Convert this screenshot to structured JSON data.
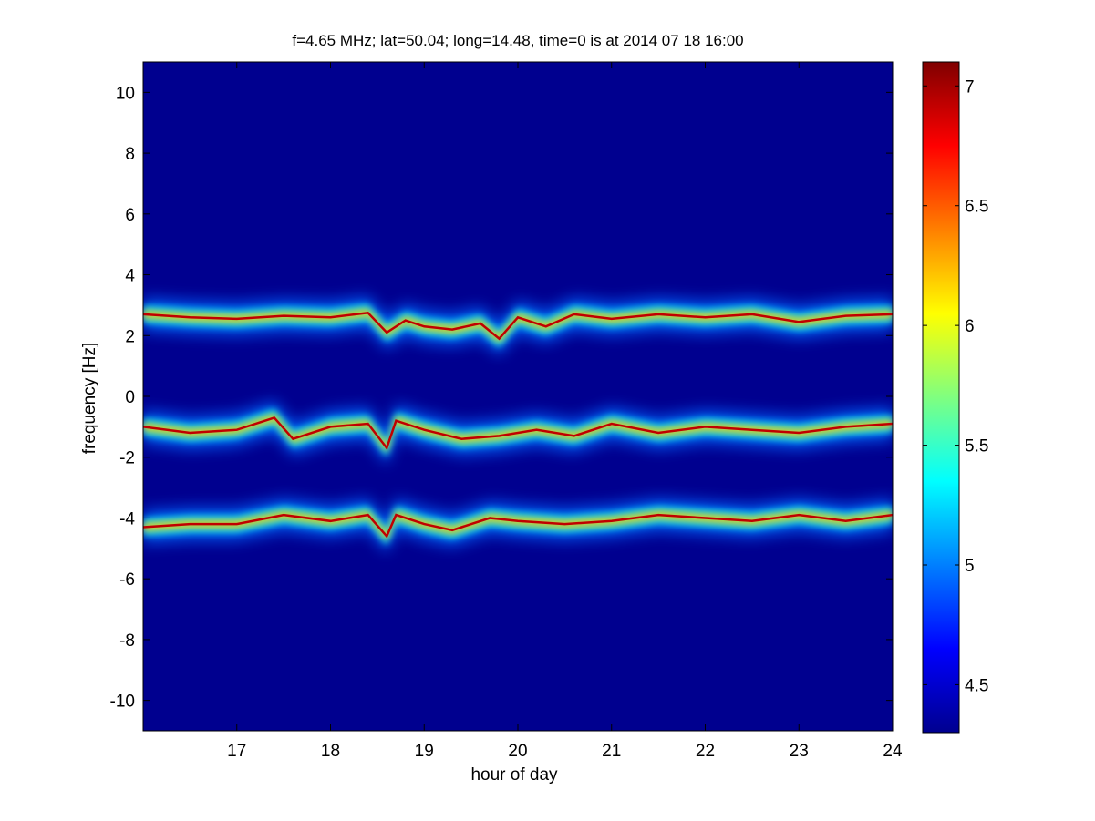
{
  "chart_data": {
    "type": "heatmap",
    "title": "f=4.65 MHz;  lat=50.04; long=14.48, time=0 is at 2014 07 18 16:00",
    "xlabel": "hour of day",
    "ylabel": "frequency [Hz]",
    "xlim": [
      16,
      24
    ],
    "ylim": [
      -11,
      11
    ],
    "xticks": [
      17,
      18,
      19,
      20,
      21,
      22,
      23,
      24
    ],
    "yticks": [
      -10,
      -8,
      -6,
      -4,
      -2,
      0,
      2,
      4,
      6,
      8,
      10
    ],
    "colorbar": {
      "colormap": "jet",
      "clim": [
        4.3,
        7.1
      ],
      "ticks": [
        4.5,
        5,
        5.5,
        6,
        6.5,
        7
      ]
    },
    "background_value": 4.3,
    "series": [
      {
        "center_freq": 2.7,
        "ridge": [
          [
            16.0,
            2.7
          ],
          [
            16.5,
            2.6
          ],
          [
            17.0,
            2.55
          ],
          [
            17.5,
            2.65
          ],
          [
            18.0,
            2.6
          ],
          [
            18.4,
            2.75
          ],
          [
            18.6,
            2.1
          ],
          [
            18.8,
            2.5
          ],
          [
            19.0,
            2.3
          ],
          [
            19.3,
            2.2
          ],
          [
            19.6,
            2.4
          ],
          [
            19.8,
            1.9
          ],
          [
            20.0,
            2.6
          ],
          [
            20.3,
            2.3
          ],
          [
            20.6,
            2.7
          ],
          [
            21.0,
            2.55
          ],
          [
            21.5,
            2.7
          ],
          [
            22.0,
            2.6
          ],
          [
            22.5,
            2.7
          ],
          [
            23.0,
            2.45
          ],
          [
            23.5,
            2.65
          ],
          [
            24.0,
            2.7
          ]
        ]
      },
      {
        "center_freq": -1.0,
        "ridge": [
          [
            16.0,
            -1.0
          ],
          [
            16.5,
            -1.2
          ],
          [
            17.0,
            -1.1
          ],
          [
            17.4,
            -0.7
          ],
          [
            17.6,
            -1.4
          ],
          [
            18.0,
            -1.0
          ],
          [
            18.4,
            -0.9
          ],
          [
            18.6,
            -1.7
          ],
          [
            18.7,
            -0.8
          ],
          [
            19.0,
            -1.1
          ],
          [
            19.4,
            -1.4
          ],
          [
            19.8,
            -1.3
          ],
          [
            20.2,
            -1.1
          ],
          [
            20.6,
            -1.3
          ],
          [
            21.0,
            -0.9
          ],
          [
            21.5,
            -1.2
          ],
          [
            22.0,
            -1.0
          ],
          [
            22.5,
            -1.1
          ],
          [
            23.0,
            -1.2
          ],
          [
            23.5,
            -1.0
          ],
          [
            24.0,
            -0.9
          ]
        ]
      },
      {
        "center_freq": -4.0,
        "ridge": [
          [
            16.0,
            -4.3
          ],
          [
            16.5,
            -4.2
          ],
          [
            17.0,
            -4.2
          ],
          [
            17.5,
            -3.9
          ],
          [
            18.0,
            -4.1
          ],
          [
            18.4,
            -3.9
          ],
          [
            18.6,
            -4.6
          ],
          [
            18.7,
            -3.9
          ],
          [
            19.0,
            -4.2
          ],
          [
            19.3,
            -4.4
          ],
          [
            19.7,
            -4.0
          ],
          [
            20.0,
            -4.1
          ],
          [
            20.5,
            -4.2
          ],
          [
            21.0,
            -4.1
          ],
          [
            21.5,
            -3.9
          ],
          [
            22.0,
            -4.0
          ],
          [
            22.5,
            -4.1
          ],
          [
            23.0,
            -3.9
          ],
          [
            23.5,
            -4.1
          ],
          [
            24.0,
            -3.9
          ]
        ]
      }
    ]
  }
}
